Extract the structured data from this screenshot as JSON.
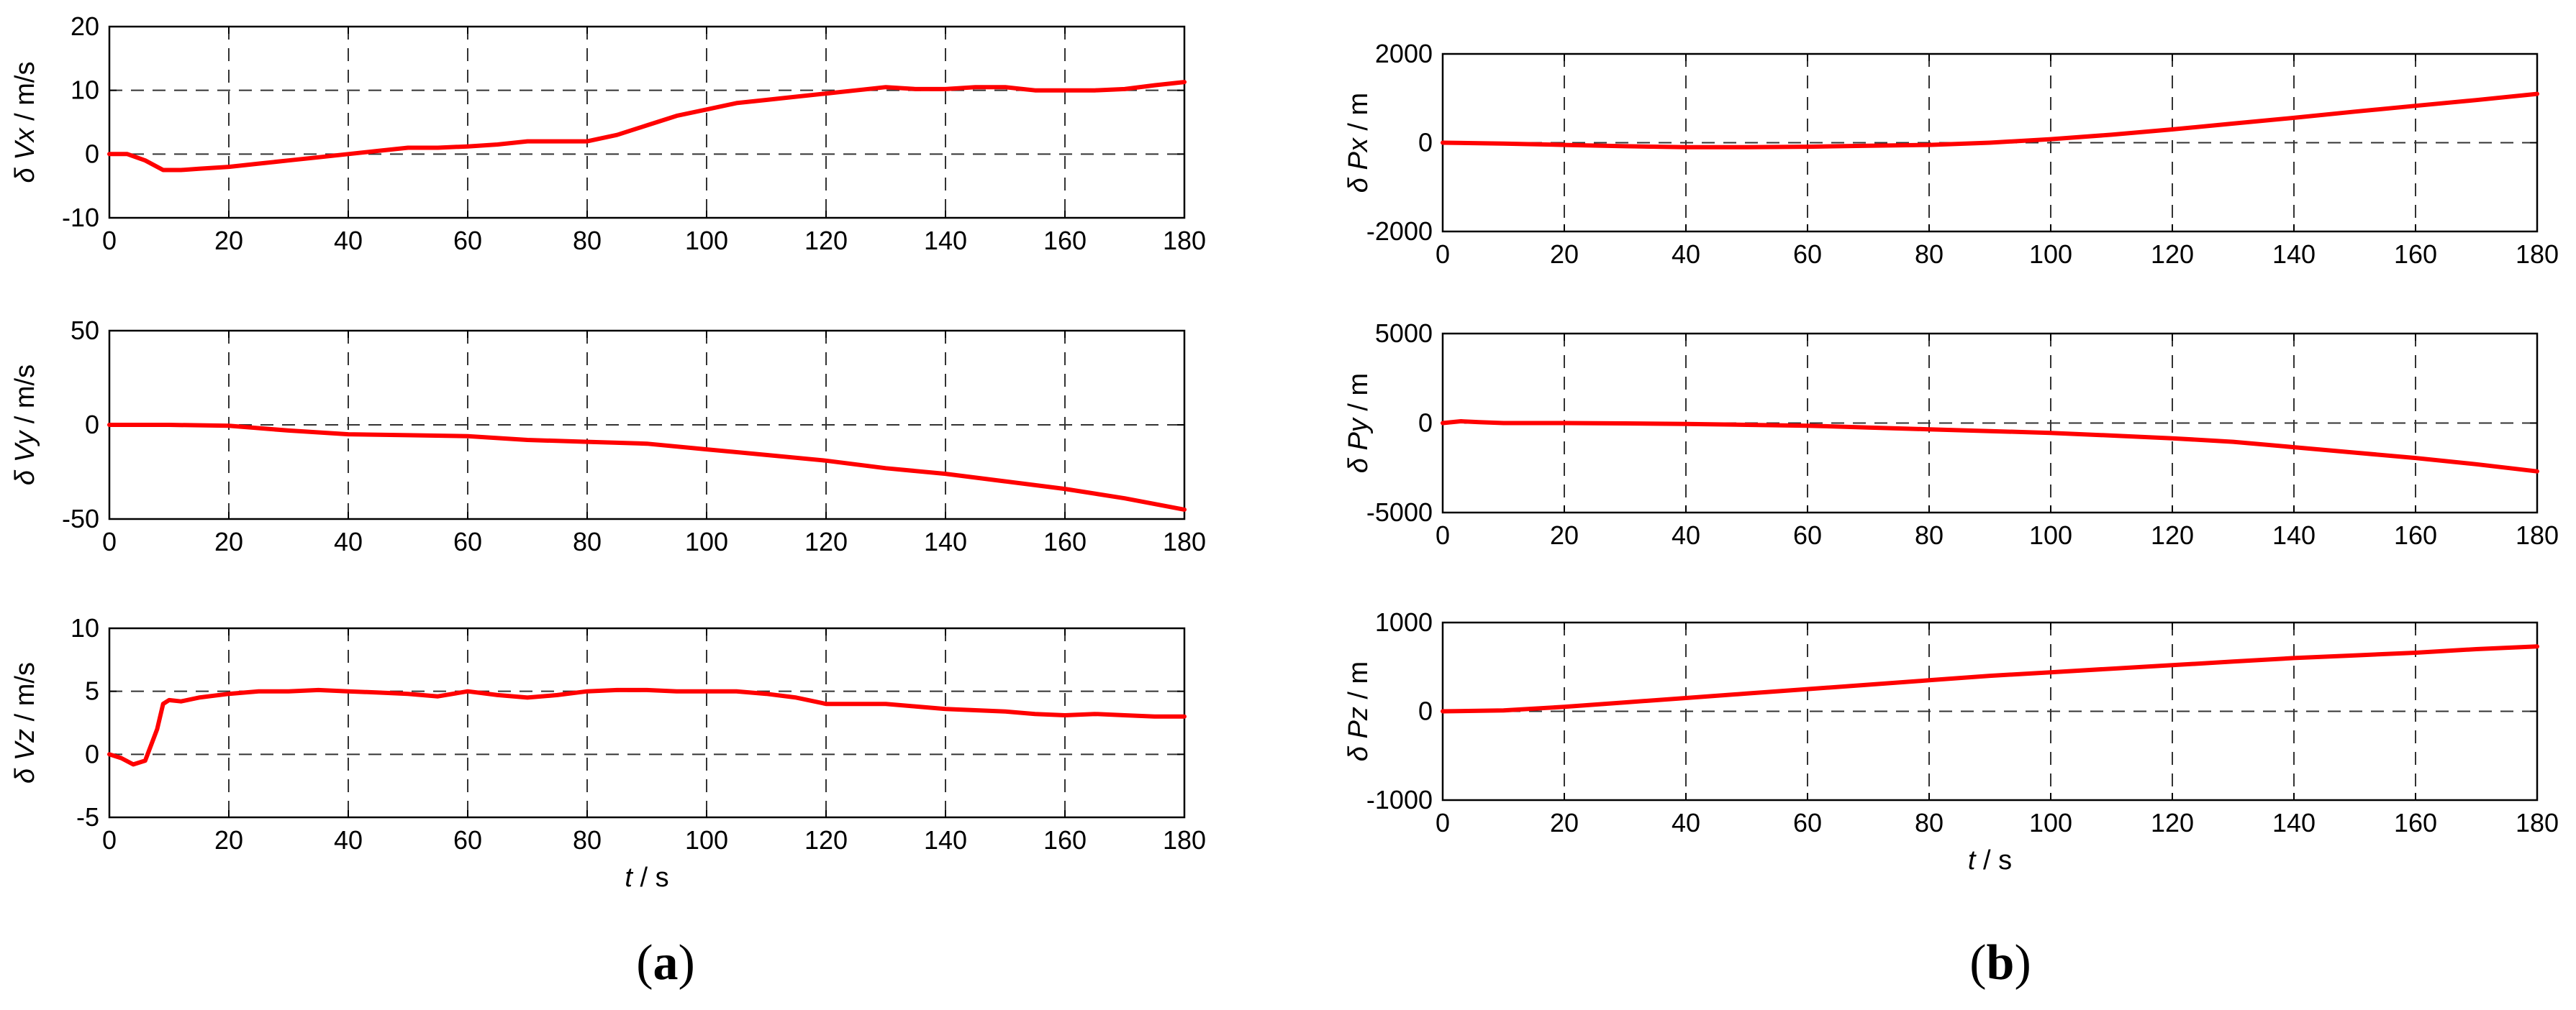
{
  "chart_data": [
    {
      "type": "line",
      "panel": "a",
      "ylabel": "δ Vx / m/s",
      "xlabel": "",
      "xlim": [
        0,
        180
      ],
      "ylim": [
        -10,
        20
      ],
      "xticks": [
        0,
        20,
        40,
        60,
        80,
        100,
        120,
        140,
        160,
        180
      ],
      "yticks": [
        -10,
        0,
        10,
        20
      ],
      "dashed_y": [
        0,
        10
      ],
      "grid": true,
      "color": "#ff0000",
      "x": [
        0,
        3,
        6,
        9,
        12,
        15,
        20,
        25,
        30,
        35,
        40,
        45,
        50,
        55,
        60,
        65,
        70,
        75,
        80,
        85,
        90,
        95,
        100,
        105,
        110,
        115,
        120,
        125,
        130,
        135,
        140,
        145,
        150,
        155,
        160,
        165,
        170,
        175,
        180
      ],
      "y": [
        0,
        0,
        -1,
        -2.5,
        -2.5,
        -2.3,
        -2,
        -1.5,
        -1,
        -0.5,
        0,
        0.5,
        1,
        1,
        1.2,
        1.5,
        2,
        2,
        2,
        3,
        4.5,
        6,
        7,
        8,
        8.5,
        9,
        9.5,
        10,
        10.5,
        10.2,
        10.2,
        10.5,
        10.5,
        10,
        10,
        10,
        10.2,
        10.8,
        11.3
      ]
    },
    {
      "type": "line",
      "panel": "a",
      "ylabel": "δ Vy / m/s",
      "xlabel": "",
      "xlim": [
        0,
        180
      ],
      "ylim": [
        -50,
        50
      ],
      "xticks": [
        0,
        20,
        40,
        60,
        80,
        100,
        120,
        140,
        160,
        180
      ],
      "yticks": [
        -50,
        0,
        50
      ],
      "dashed_y": [
        0
      ],
      "grid": true,
      "color": "#ff0000",
      "x": [
        0,
        10,
        20,
        30,
        40,
        50,
        60,
        70,
        80,
        90,
        100,
        110,
        120,
        130,
        140,
        150,
        160,
        170,
        180
      ],
      "y": [
        0,
        0,
        -0.5,
        -3,
        -5,
        -5.5,
        -6,
        -8,
        -9,
        -10,
        -13,
        -16,
        -19,
        -23,
        -26,
        -30,
        -34,
        -39,
        -45
      ]
    },
    {
      "type": "line",
      "panel": "a",
      "ylabel": "δ Vz / m/s",
      "xlabel": "t / s",
      "xlim": [
        0,
        180
      ],
      "ylim": [
        -5,
        10
      ],
      "xticks": [
        0,
        20,
        40,
        60,
        80,
        100,
        120,
        140,
        160,
        180
      ],
      "yticks": [
        -5,
        0,
        5,
        10
      ],
      "dashed_y": [
        0,
        5
      ],
      "grid": true,
      "color": "#ff0000",
      "x": [
        0,
        2,
        4,
        6,
        8,
        9,
        10,
        12,
        15,
        20,
        25,
        30,
        35,
        40,
        45,
        50,
        55,
        60,
        65,
        70,
        75,
        80,
        85,
        90,
        95,
        100,
        105,
        110,
        115,
        120,
        125,
        130,
        135,
        140,
        145,
        150,
        155,
        160,
        165,
        170,
        175,
        180
      ],
      "y": [
        0,
        -0.3,
        -0.8,
        -0.5,
        2,
        4,
        4.3,
        4.2,
        4.5,
        4.8,
        5,
        5,
        5.1,
        5,
        4.9,
        4.8,
        4.6,
        5,
        4.7,
        4.5,
        4.7,
        5,
        5.1,
        5.1,
        5,
        5,
        5,
        4.8,
        4.5,
        4,
        4,
        4,
        3.8,
        3.6,
        3.5,
        3.4,
        3.2,
        3.1,
        3.2,
        3.1,
        3,
        3
      ]
    },
    {
      "type": "line",
      "panel": "b",
      "ylabel": "δ Px / m",
      "xlabel": "",
      "xlim": [
        0,
        180
      ],
      "ylim": [
        -2000,
        2000
      ],
      "xticks": [
        0,
        20,
        40,
        60,
        80,
        100,
        120,
        140,
        160,
        180
      ],
      "yticks": [
        -2000,
        0,
        2000
      ],
      "dashed_y": [
        0
      ],
      "grid": true,
      "color": "#ff0000",
      "x": [
        0,
        10,
        20,
        30,
        40,
        50,
        60,
        70,
        80,
        90,
        100,
        110,
        120,
        130,
        140,
        150,
        160,
        170,
        180
      ],
      "y": [
        0,
        -20,
        -50,
        -80,
        -100,
        -100,
        -90,
        -70,
        -50,
        0,
        80,
        180,
        300,
        430,
        560,
        700,
        830,
        960,
        1100
      ]
    },
    {
      "type": "line",
      "panel": "b",
      "ylabel": "δ Py / m",
      "xlabel": "",
      "xlim": [
        0,
        180
      ],
      "ylim": [
        -5000,
        5000
      ],
      "xticks": [
        0,
        20,
        40,
        60,
        80,
        100,
        120,
        140,
        160,
        180
      ],
      "yticks": [
        -5000,
        0,
        5000
      ],
      "dashed_y": [
        0
      ],
      "grid": true,
      "color": "#ff0000",
      "x": [
        0,
        3,
        6,
        10,
        20,
        30,
        40,
        50,
        60,
        70,
        80,
        90,
        100,
        110,
        120,
        130,
        140,
        150,
        160,
        170,
        180
      ],
      "y": [
        0,
        100,
        50,
        0,
        0,
        -20,
        -50,
        -100,
        -150,
        -250,
        -350,
        -450,
        -550,
        -700,
        -850,
        -1050,
        -1350,
        -1650,
        -1950,
        -2300,
        -2700
      ]
    },
    {
      "type": "line",
      "panel": "b",
      "ylabel": "δ Pz / m",
      "xlabel": "t / s",
      "xlim": [
        0,
        180
      ],
      "ylim": [
        -1000,
        1000
      ],
      "xticks": [
        0,
        20,
        40,
        60,
        80,
        100,
        120,
        140,
        160,
        180
      ],
      "yticks": [
        -1000,
        0,
        1000
      ],
      "dashed_y": [
        0
      ],
      "grid": true,
      "color": "#ff0000",
      "x": [
        0,
        10,
        20,
        30,
        40,
        50,
        60,
        70,
        80,
        90,
        100,
        110,
        120,
        130,
        140,
        150,
        160,
        170,
        180
      ],
      "y": [
        0,
        10,
        50,
        100,
        150,
        200,
        250,
        300,
        350,
        400,
        440,
        480,
        520,
        560,
        600,
        630,
        660,
        700,
        730
      ]
    }
  ],
  "captions": {
    "a": {
      "open": "(",
      "letter": "a",
      "close": ")"
    },
    "b": {
      "open": "(",
      "letter": "b",
      "close": ")"
    }
  }
}
